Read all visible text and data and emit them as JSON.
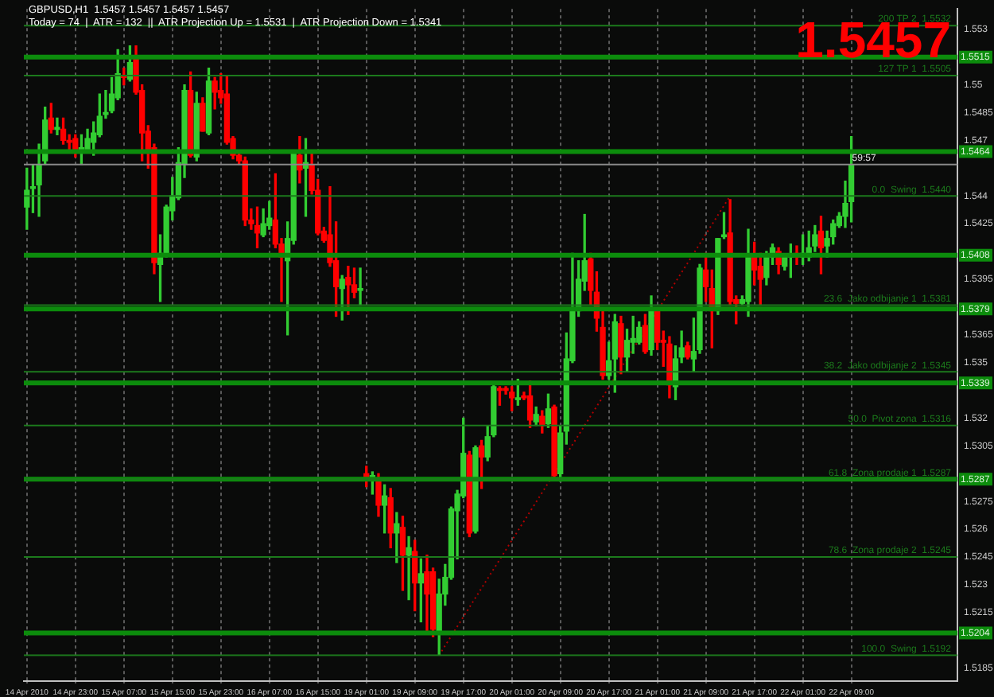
{
  "chart_data": {
    "type": "candlestick",
    "title": "GBPUSD,H1  1.5457 1.5457 1.5457 1.5457",
    "subtitle": "Today = 74  |  ATR = 132  ||  ATR Projection Up = 1.5531  |  ATR Projection Down = 1.5341",
    "categories": [
      "14 Apr 2010",
      null,
      null,
      null,
      null,
      null,
      null,
      null,
      "14 Apr 23:00",
      null,
      null,
      null,
      null,
      null,
      null,
      null,
      "15 Apr 07:00",
      null,
      null,
      null,
      null,
      null,
      null,
      null,
      "15 Apr 15:00",
      null,
      null,
      null,
      null,
      null,
      null,
      null,
      "15 Apr 23:00",
      null,
      null,
      null,
      null,
      null,
      null,
      null,
      "16 Apr 07:00",
      null,
      null,
      null,
      null,
      null,
      null,
      null,
      "16 Apr 15:00",
      null,
      null,
      null,
      null,
      null,
      null,
      null,
      "19 Apr 01:00",
      null,
      null,
      null,
      null,
      null,
      null,
      null,
      "19 Apr 09:00",
      null,
      null,
      null,
      null,
      null,
      null,
      null,
      "19 Apr 17:00",
      null,
      null,
      null,
      null,
      null,
      null,
      null,
      "20 Apr 01:00",
      null,
      null,
      null,
      null,
      null,
      null,
      null,
      "20 Apr 09:00",
      null,
      null,
      null,
      null,
      null,
      null,
      null,
      "20 Apr 17:00",
      null,
      null,
      null,
      null,
      null,
      null,
      null,
      "21 Apr 01:00",
      null,
      null,
      null,
      null,
      null,
      null,
      null,
      "21 Apr 09:00",
      null,
      null,
      null,
      null,
      null,
      null,
      null,
      "21 Apr 17:00",
      null,
      null,
      null,
      null,
      null,
      null,
      null,
      "22 Apr 01:00",
      null,
      null,
      null,
      null,
      null,
      null,
      null,
      "22 Apr 09:00",
      null,
      null,
      null,
      null,
      null,
      null,
      null,
      null,
      null,
      null,
      null,
      null,
      null,
      null,
      null,
      null,
      null
    ],
    "ohlc": [
      [
        1.5434,
        1.5455,
        1.5422,
        1.5443
      ],
      [
        1.5444,
        1.5457,
        1.5431,
        1.5445
      ],
      [
        1.5446,
        1.5468,
        1.5429,
        1.5457
      ],
      [
        1.5459,
        1.5488,
        1.5457,
        1.5481
      ],
      [
        1.5482,
        1.549,
        1.5474,
        1.5476
      ],
      [
        1.5476,
        1.5482,
        1.5473,
        1.5477
      ],
      [
        1.5476,
        1.5482,
        1.5468,
        1.547
      ],
      [
        1.547,
        1.5473,
        1.5464,
        1.5469
      ],
      [
        1.5471,
        1.5473,
        1.5461,
        1.5464
      ],
      [
        1.5465,
        1.5473,
        1.5457,
        1.5466
      ],
      [
        1.5465,
        1.5476,
        1.5464,
        1.5471
      ],
      [
        1.5469,
        1.548,
        1.5462,
        1.5474
      ],
      [
        1.5473,
        1.5495,
        1.5472,
        1.5483
      ],
      [
        1.5484,
        1.5497,
        1.5482,
        1.5485
      ],
      [
        1.5486,
        1.5504,
        1.5485,
        1.5495
      ],
      [
        1.5493,
        1.5519,
        1.5492,
        1.5506
      ],
      [
        1.5505,
        1.5509,
        1.55,
        1.5504
      ],
      [
        1.5503,
        1.5521,
        1.5502,
        1.5512
      ],
      [
        1.5514,
        1.5521,
        1.5495,
        1.5496
      ],
      [
        1.5497,
        1.55,
        1.5459,
        1.5474
      ],
      [
        1.5475,
        1.5478,
        1.5455,
        1.5464
      ],
      [
        1.5466,
        1.5468,
        1.5398,
        1.5404
      ],
      [
        1.5403,
        1.5419,
        1.5383,
        1.5409
      ],
      [
        1.5409,
        1.5435,
        1.5407,
        1.5434
      ],
      [
        1.5432,
        1.545,
        1.5427,
        1.544
      ],
      [
        1.5439,
        1.5466,
        1.5438,
        1.5458
      ],
      [
        1.5457,
        1.55,
        1.545,
        1.5497
      ],
      [
        1.5497,
        1.5507,
        1.5461,
        1.5462
      ],
      [
        1.5461,
        1.5496,
        1.5459,
        1.549
      ],
      [
        1.549,
        1.5493,
        1.5475,
        1.5475
      ],
      [
        1.5474,
        1.5509,
        1.5473,
        1.5502
      ],
      [
        1.5502,
        1.5504,
        1.5487,
        1.5496
      ],
      [
        1.5497,
        1.5506,
        1.549,
        1.5493
      ],
      [
        1.5495,
        1.5505,
        1.5468,
        1.5469
      ],
      [
        1.5471,
        1.5472,
        1.546,
        1.5462
      ],
      [
        1.5462,
        1.5464,
        1.5457,
        1.5459
      ],
      [
        1.5459,
        1.5461,
        1.5424,
        1.5427
      ],
      [
        1.5427,
        1.5433,
        1.5422,
        1.5425
      ],
      [
        1.5424,
        1.5434,
        1.5412,
        1.542
      ],
      [
        1.5419,
        1.5433,
        1.5418,
        1.5425
      ],
      [
        1.5424,
        1.5437,
        1.5422,
        1.5428
      ],
      [
        1.5427,
        1.5452,
        1.5412,
        1.5414
      ],
      [
        1.5414,
        1.5417,
        1.5383,
        1.5407
      ],
      [
        1.5405,
        1.5426,
        1.5365,
        1.5417
      ],
      [
        1.5416,
        1.5464,
        1.5414,
        1.5463
      ],
      [
        1.5462,
        1.5472,
        1.5447,
        1.5454
      ],
      [
        1.5455,
        1.5471,
        1.5429,
        1.5458
      ],
      [
        1.5457,
        1.5464,
        1.5441,
        1.5443
      ],
      [
        1.5443,
        1.5449,
        1.5419,
        1.542
      ],
      [
        1.5421,
        1.5423,
        1.5415,
        1.5416
      ],
      [
        1.5419,
        1.5445,
        1.5402,
        1.5404
      ],
      [
        1.5405,
        1.5426,
        1.5375,
        1.5391
      ],
      [
        1.539,
        1.5397,
        1.5373,
        1.5395
      ],
      [
        1.5396,
        1.5402,
        1.5376,
        1.5392
      ],
      [
        1.5392,
        1.5401,
        1.5385,
        1.5388
      ],
      [
        1.5389,
        1.5401,
        1.5381,
        1.539
      ],
      [
        1.529,
        1.5294,
        1.5283,
        1.5287
      ],
      [
        1.5288,
        1.5291,
        1.5279,
        1.5289
      ],
      [
        1.5286,
        1.529,
        1.5267,
        1.5273
      ],
      [
        1.5273,
        1.5284,
        1.5258,
        1.5278
      ],
      [
        1.5277,
        1.5282,
        1.525,
        1.5258
      ],
      [
        1.5258,
        1.5269,
        1.5242,
        1.5263
      ],
      [
        1.5261,
        1.5267,
        1.5227,
        1.5246
      ],
      [
        1.5246,
        1.5256,
        1.5222,
        1.525
      ],
      [
        1.5248,
        1.5254,
        1.5216,
        1.5231
      ],
      [
        1.5231,
        1.5244,
        1.521,
        1.5236
      ],
      [
        1.5237,
        1.5246,
        1.5205,
        1.5225
      ],
      [
        1.5237,
        1.5239,
        1.5202,
        1.5206
      ],
      [
        1.5204,
        1.5233,
        1.5192,
        1.5225
      ],
      [
        1.5225,
        1.5241,
        1.5219,
        1.5234
      ],
      [
        1.5234,
        1.5272,
        1.5233,
        1.5271
      ],
      [
        1.527,
        1.5281,
        1.5244,
        1.5279
      ],
      [
        1.5278,
        1.532,
        1.5277,
        1.5301
      ],
      [
        1.53,
        1.5302,
        1.5256,
        1.5258
      ],
      [
        1.5259,
        1.5305,
        1.5258,
        1.5304
      ],
      [
        1.5305,
        1.5308,
        1.5282,
        1.5299
      ],
      [
        1.5299,
        1.5316,
        1.5297,
        1.531
      ],
      [
        1.5311,
        1.5339,
        1.531,
        1.5337
      ],
      [
        1.5336,
        1.5337,
        1.5327,
        1.5335
      ],
      [
        1.5336,
        1.5337,
        1.5333,
        1.5335
      ],
      [
        1.5334,
        1.5337,
        1.5324,
        1.5331
      ],
      [
        1.533,
        1.5341,
        1.5327,
        1.5331
      ],
      [
        1.5332,
        1.5334,
        1.533,
        1.5331
      ],
      [
        1.5332,
        1.534,
        1.5315,
        1.5319
      ],
      [
        1.5318,
        1.5326,
        1.5316,
        1.5322
      ],
      [
        1.5321,
        1.5324,
        1.5312,
        1.5316
      ],
      [
        1.5317,
        1.5333,
        1.5315,
        1.5325
      ],
      [
        1.5326,
        1.5327,
        1.5288,
        1.5289
      ],
      [
        1.529,
        1.5316,
        1.5286,
        1.5312
      ],
      [
        1.5313,
        1.5366,
        1.5306,
        1.5352
      ],
      [
        1.5351,
        1.5409,
        1.535,
        1.5378
      ],
      [
        1.5378,
        1.5405,
        1.5375,
        1.5395
      ],
      [
        1.5394,
        1.543,
        1.5389,
        1.5405
      ],
      [
        1.5406,
        1.5409,
        1.5381,
        1.5389
      ],
      [
        1.5388,
        1.5399,
        1.5367,
        1.5374
      ],
      [
        1.5369,
        1.5378,
        1.5341,
        1.5343
      ],
      [
        1.5343,
        1.5361,
        1.5341,
        1.5351
      ],
      [
        1.5352,
        1.5376,
        1.5334,
        1.5372
      ],
      [
        1.5371,
        1.5375,
        1.5344,
        1.5353
      ],
      [
        1.5353,
        1.5368,
        1.5345,
        1.5362
      ],
      [
        1.5361,
        1.5375,
        1.5355,
        1.5363
      ],
      [
        1.5361,
        1.5372,
        1.536,
        1.5369
      ],
      [
        1.537,
        1.5376,
        1.5355,
        1.5356
      ],
      [
        1.5357,
        1.5386,
        1.5354,
        1.5378
      ],
      [
        1.5378,
        1.5379,
        1.5357,
        1.5361
      ],
      [
        1.5362,
        1.5367,
        1.5348,
        1.5361
      ],
      [
        1.536,
        1.5364,
        1.5331,
        1.5338
      ],
      [
        1.5337,
        1.5359,
        1.533,
        1.5352
      ],
      [
        1.5353,
        1.5367,
        1.535,
        1.5358
      ],
      [
        1.5359,
        1.5361,
        1.5352,
        1.5353
      ],
      [
        1.5352,
        1.5374,
        1.5345,
        1.5356
      ],
      [
        1.5357,
        1.5403,
        1.5355,
        1.5401
      ],
      [
        1.54,
        1.5409,
        1.5383,
        1.5391
      ],
      [
        1.539,
        1.54,
        1.5358,
        1.5378
      ],
      [
        1.5378,
        1.5417,
        1.5376,
        1.5417
      ],
      [
        1.5418,
        1.5431,
        1.5417,
        1.5419
      ],
      [
        1.542,
        1.5438,
        1.5381,
        1.5383
      ],
      [
        1.5384,
        1.5386,
        1.5371,
        1.5382
      ],
      [
        1.5382,
        1.5386,
        1.5381,
        1.5384
      ],
      [
        1.5383,
        1.5422,
        1.5375,
        1.5408
      ],
      [
        1.5407,
        1.5415,
        1.5392,
        1.54
      ],
      [
        1.5402,
        1.5409,
        1.5381,
        1.5395
      ],
      [
        1.5396,
        1.541,
        1.5392,
        1.5408
      ],
      [
        1.5407,
        1.5414,
        1.5403,
        1.5412
      ],
      [
        1.541,
        1.5412,
        1.5398,
        1.5403
      ],
      [
        1.5402,
        1.5408,
        1.54,
        1.5407
      ],
      [
        1.5407,
        1.5414,
        1.5396,
        1.5408
      ],
      [
        1.5409,
        1.5413,
        1.5403,
        1.5407
      ],
      [
        1.5407,
        1.5419,
        1.5403,
        1.5409
      ],
      [
        1.5407,
        1.5421,
        1.5405,
        1.5412
      ],
      [
        1.5413,
        1.5424,
        1.541,
        1.5419
      ],
      [
        1.5421,
        1.5429,
        1.5398,
        1.5412
      ],
      [
        1.5413,
        1.5421,
        1.5407,
        1.5417
      ],
      [
        1.5418,
        1.5427,
        1.5414,
        1.5425
      ],
      [
        1.5424,
        1.5431,
        1.5423,
        1.5429
      ],
      [
        1.5429,
        1.5448,
        1.5423,
        1.5436
      ],
      [
        1.5437,
        1.5472,
        1.5426,
        1.5457
      ],
      null,
      null,
      null,
      null,
      null,
      null,
      null,
      null,
      null,
      null,
      null,
      null,
      null,
      null,
      null,
      null,
      null
    ],
    "colors": [
      "#32cd32",
      "#32cd32",
      "#32cd32",
      "#32cd32",
      "#ff0000",
      "#32cd32",
      "#ff0000",
      "#ff0000",
      "#ff0000",
      "#32cd32",
      "#32cd32",
      "#32cd32",
      "#32cd32",
      "#32cd32",
      "#32cd32",
      "#32cd32",
      "#ff0000",
      "#32cd32",
      "#ff0000",
      "#ff0000",
      "#ff0000",
      "#ff0000",
      "#32cd32",
      "#32cd32",
      "#32cd32",
      "#32cd32",
      "#32cd32",
      "#ff0000",
      "#32cd32",
      "#ff0000",
      "#32cd32",
      "#ff0000",
      "#ff0000",
      "#ff0000",
      "#ff0000",
      "#ff0000",
      "#ff0000",
      "#ff0000",
      "#ff0000",
      "#32cd32",
      "#32cd32",
      "#ff0000",
      "#ff0000",
      "#32cd32",
      "#32cd32",
      "#ff0000",
      "#32cd32",
      "#ff0000",
      "#ff0000",
      "#ff0000",
      "#ff0000",
      "#ff0000",
      "#32cd32",
      "#ff0000",
      "#ff0000",
      "#32cd32",
      "#ff0000",
      "#32cd32",
      "#ff0000",
      "#32cd32",
      "#ff0000",
      "#32cd32",
      "#ff0000",
      "#32cd32",
      "#ff0000",
      "#32cd32",
      "#ff0000",
      "#ff0000",
      "#32cd32",
      "#32cd32",
      "#32cd32",
      "#32cd32",
      "#32cd32",
      "#ff0000",
      "#32cd32",
      "#ff0000",
      "#32cd32",
      "#32cd32",
      "#ff0000",
      "#ff0000",
      "#ff0000",
      "#32cd32",
      "#ff0000",
      "#ff0000",
      "#32cd32",
      "#ff0000",
      "#32cd32",
      "#ff0000",
      "#32cd32",
      "#32cd32",
      "#32cd32",
      "#32cd32",
      "#32cd32",
      "#ff0000",
      "#ff0000",
      "#ff0000",
      "#32cd32",
      "#32cd32",
      "#ff0000",
      "#32cd32",
      "#32cd32",
      "#32cd32",
      "#ff0000",
      "#32cd32",
      "#ff0000",
      "#ff0000",
      "#ff0000",
      "#32cd32",
      "#32cd32",
      "#ff0000",
      "#32cd32",
      "#32cd32",
      "#ff0000",
      "#ff0000",
      "#32cd32",
      "#32cd32",
      "#ff0000",
      "#ff0000",
      "#32cd32",
      "#32cd32",
      "#ff0000",
      "#ff0000",
      "#32cd32",
      "#32cd32",
      "#ff0000",
      "#32cd32",
      "#32cd32",
      "#ff0000",
      "#32cd32",
      "#32cd32",
      "#32cd32",
      "#ff0000",
      "#32cd32",
      "#32cd32",
      "#32cd32",
      "#32cd32",
      "#32cd32",
      null,
      null,
      null,
      null,
      null,
      null,
      null,
      null,
      null,
      null,
      null,
      null,
      null,
      null,
      null,
      null,
      null
    ],
    "series": [
      {
        "type": "line",
        "color": "#b00000",
        "line_style": "dotted",
        "values": [
          null,
          null,
          null,
          null,
          null,
          null,
          null,
          null,
          null,
          null,
          null,
          null,
          null,
          null,
          null,
          null,
          null,
          null,
          null,
          null,
          null,
          null,
          null,
          null,
          null,
          null,
          null,
          null,
          null,
          null,
          null,
          null,
          null,
          null,
          null,
          null,
          null,
          null,
          null,
          null,
          null,
          null,
          null,
          null,
          null,
          null,
          null,
          null,
          null,
          null,
          null,
          null,
          null,
          null,
          null,
          null,
          null,
          null,
          null,
          null,
          null,
          null,
          null,
          null,
          null,
          null,
          null,
          null,
          1.5192,
          null,
          null,
          null,
          null,
          null,
          null,
          null,
          null,
          null,
          null,
          null,
          null,
          null,
          null,
          null,
          null,
          null,
          null,
          null,
          null,
          null,
          null,
          null,
          null,
          null,
          null,
          null,
          null,
          null,
          null,
          null,
          null,
          null,
          null,
          null,
          null,
          null,
          null,
          null,
          null,
          null,
          null,
          null,
          null,
          null,
          null,
          null,
          1.544,
          null,
          null,
          null,
          null,
          null,
          null,
          null,
          null,
          null,
          null,
          null,
          null,
          null,
          null,
          null,
          null,
          null,
          null,
          null,
          null,
          null,
          null,
          null,
          null,
          null,
          null,
          null,
          null,
          null,
          null,
          null,
          null,
          null,
          null,
          null,
          null,
          null
        ]
      }
    ],
    "ylim": [
      1.5178,
      1.5541
    ],
    "yticks": [
      1.553,
      1.55,
      1.5485,
      1.547,
      1.544,
      1.5425,
      1.5395,
      1.5365,
      1.535,
      1.532,
      1.5305,
      1.5275,
      1.526,
      1.5245,
      1.523,
      1.5215,
      1.5185
    ],
    "grid": "x",
    "annotations": [
      "1.5457",
      {
        "text": "59:57",
        "y": 1.5457
      },
      {
        "text": "1.5515",
        "y": 1.5515
      },
      {
        "text": "1.5464",
        "y": 1.5464
      },
      {
        "text": "1.5408",
        "y": 1.5408
      },
      {
        "text": "1.5379",
        "y": 1.5379
      },
      {
        "text": "1.5339",
        "y": 1.5339
      },
      {
        "text": "1.5287",
        "y": 1.5287
      },
      {
        "text": "1.5204",
        "y": 1.5204
      }
    ],
    "ref_lines": [
      {
        "axis": "y",
        "value": 1.5515,
        "color": "#0c8c0c"
      },
      {
        "axis": "y",
        "value": 1.5464,
        "color": "#0c8c0c"
      },
      {
        "axis": "y",
        "value": 1.5408,
        "color": "#0c8c0c"
      },
      {
        "axis": "y",
        "value": 1.5379,
        "color": "#0c8c0c"
      },
      {
        "axis": "y",
        "value": 1.5339,
        "color": "#0c8c0c"
      },
      {
        "axis": "y",
        "value": 1.5287,
        "color": "#0c8c0c"
      },
      {
        "axis": "y",
        "value": 1.5204,
        "color": "#0c8c0c"
      },
      {
        "axis": "y",
        "value": 1.5532,
        "label": "200 TP 2  1.5532",
        "color": "#1c7a1c"
      },
      {
        "axis": "y",
        "value": 1.5505,
        "label": "127 TP 1  1.5505",
        "color": "#1c7a1c"
      },
      {
        "axis": "y",
        "value": 1.544,
        "label": "0.0  Swing  1.5440",
        "color": "#1c7a1c"
      },
      {
        "axis": "y",
        "value": 1.5381,
        "label": "23.6  Jako odbijanje 1  1.5381",
        "color": "#1c7a1c"
      },
      {
        "axis": "y",
        "value": 1.5345,
        "label": "38.2  Jako odbijanje 2  1.5345",
        "color": "#1c7a1c"
      },
      {
        "axis": "y",
        "value": 1.5316,
        "label": "50.0  Pivot zona  1.5316",
        "color": "#1c7a1c"
      },
      {
        "axis": "y",
        "value": 1.5287,
        "label": "61.8  Zona prodaje 1  1.5287",
        "color": "#1c7a1c"
      },
      {
        "axis": "y",
        "value": 1.5245,
        "label": "78.6  Zona prodaje 2  1.5245",
        "color": "#1c7a1c"
      },
      {
        "axis": "y",
        "value": 1.5192,
        "label": "100.0  Swing  1.5192",
        "color": "#1c7a1c"
      },
      {
        "axis": "y",
        "value": 1.5457,
        "color": "#8a8a8a",
        "line_style": "solid"
      }
    ]
  }
}
